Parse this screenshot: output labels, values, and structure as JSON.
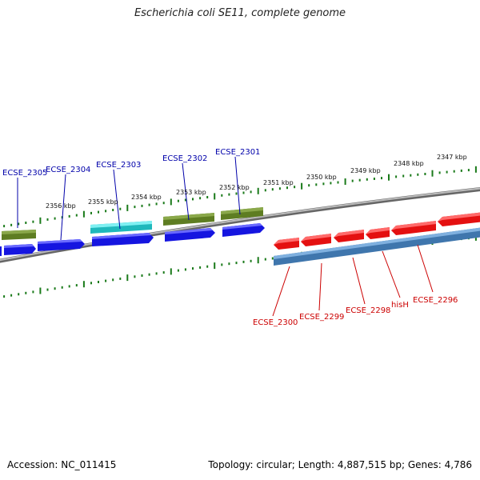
{
  "title": "Escherichia coli SE11, complete genome",
  "footer": {
    "accession": "Accession: NC_011415",
    "summary": "Topology: circular; Length: 4,887,515 bp; Genes: 4,786"
  },
  "colors": {
    "forward_label": "#0000aa",
    "reverse_label": "#cc0000",
    "tick": "#1a7a1a",
    "backbone": "#8a8a8a",
    "blue_cds": "#1515e0",
    "cyan_feature": "#22c8cc",
    "olive_feature": "#6b8a2a",
    "red_cds": "#e41010",
    "steel_feature": "#4682b4"
  },
  "tick_labels": [
    "2356 kbp",
    "2355 kbp",
    "2354 kbp",
    "2353 kbp",
    "2352 kbp",
    "2351 kbp",
    "2350 kbp",
    "2349 kbp",
    "2348 kbp",
    "2347 kbp"
  ],
  "forward_genes": [
    "ECSE_2305",
    "ECSE_2304",
    "ECSE_2303",
    "ECSE_2302",
    "ECSE_2301"
  ],
  "reverse_genes": [
    "ECSE_2300",
    "ECSE_2299",
    "ECSE_2298",
    "hisH",
    "ECSE_2296"
  ]
}
